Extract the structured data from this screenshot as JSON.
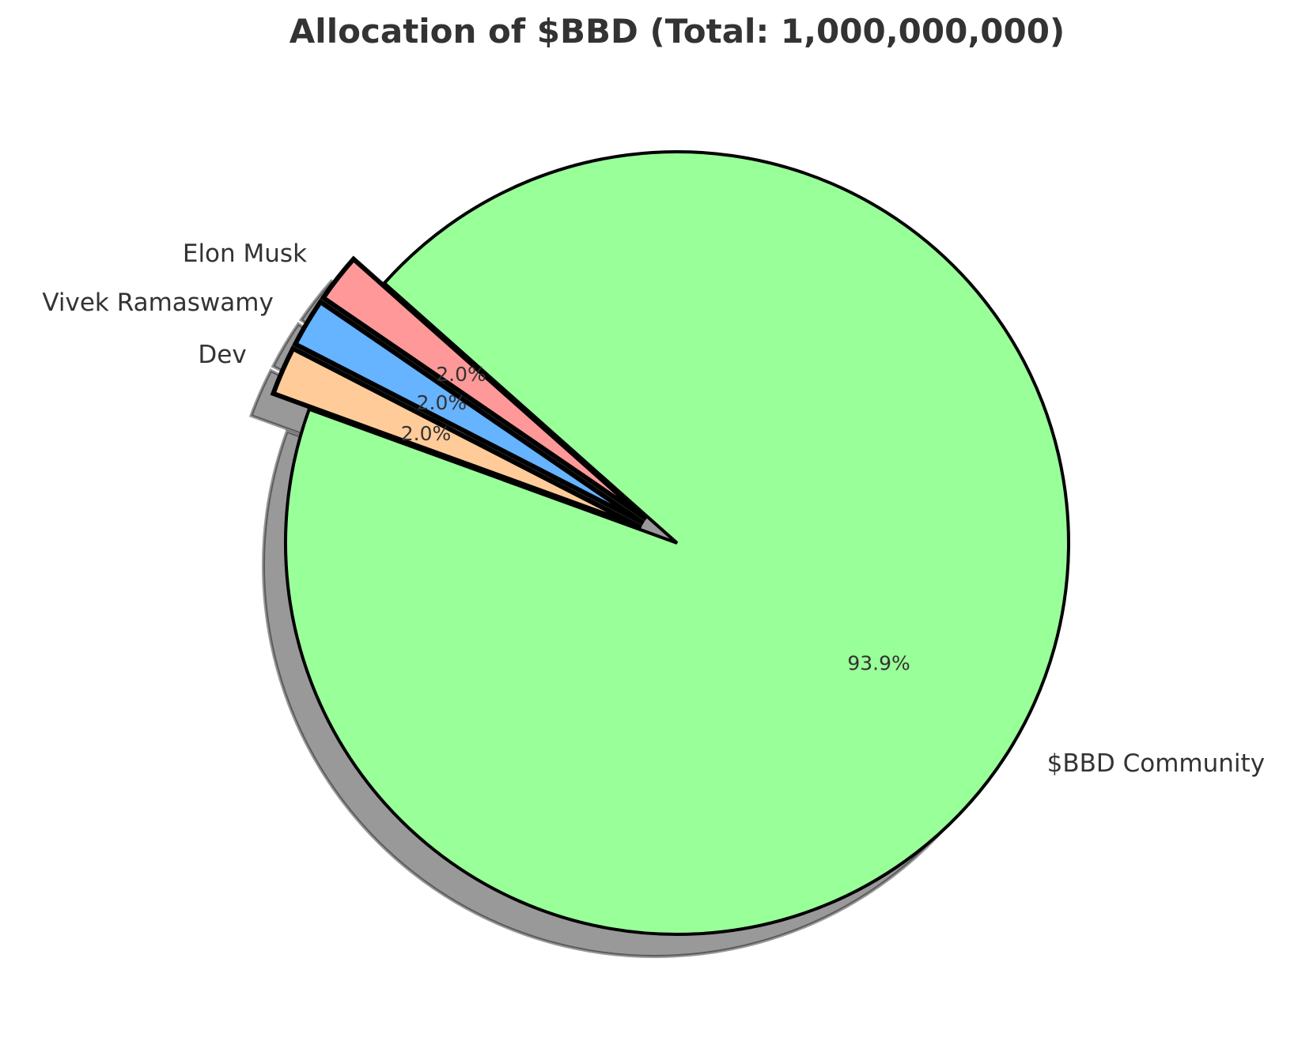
{
  "chart_data": {
    "type": "pie",
    "title": "Allocation of $BBD (Total: 1,000,000,000)",
    "start_angle_deg": 160,
    "direction": "counterclockwise",
    "shadow": true,
    "slices": [
      {
        "label": "$BBD Community",
        "value": 93.9,
        "pct_label": "93.9%",
        "color": "#99ff99",
        "exploded": false
      },
      {
        "label": "Elon Musk",
        "value": 2.0,
        "pct_label": "2.0%",
        "color": "#ff9999",
        "exploded": true
      },
      {
        "label": "Vivek Ramaswamy",
        "value": 2.0,
        "pct_label": "2.0%",
        "color": "#66b3ff",
        "exploded": true
      },
      {
        "label": "Dev",
        "value": 2.0,
        "pct_label": "2.0%",
        "color": "#ffcc99",
        "exploded": true
      }
    ]
  }
}
